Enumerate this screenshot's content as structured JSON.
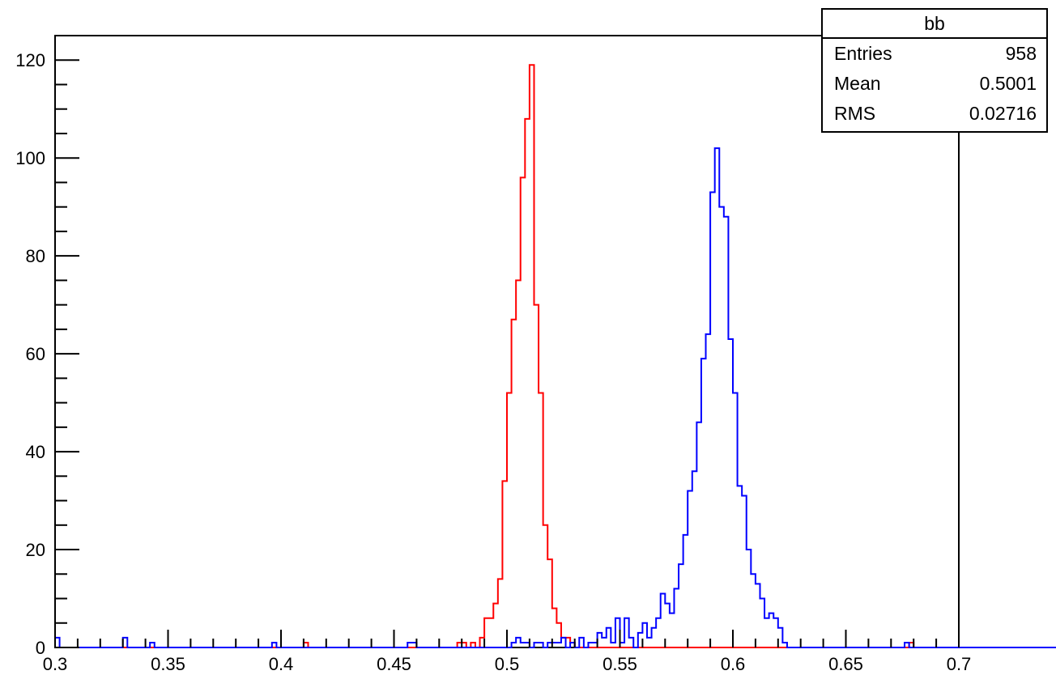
{
  "chart_data": {
    "type": "histogram",
    "title": "",
    "xlabel": "",
    "ylabel": "",
    "xlim": [
      0.3,
      0.7
    ],
    "ylim": [
      0,
      125
    ],
    "bin_width": 0.002,
    "x_ticks": [
      0.3,
      0.35,
      0.4,
      0.45,
      0.5,
      0.55,
      0.6,
      0.65,
      0.7
    ],
    "x_tick_labels": [
      "0.3",
      "0.35",
      "0.4",
      "0.45",
      "0.5",
      "0.55",
      "0.6",
      "0.65",
      "0.7"
    ],
    "y_ticks": [
      0,
      20,
      40,
      60,
      80,
      100,
      120
    ],
    "y_tick_labels": [
      "0",
      "20",
      "40",
      "60",
      "80",
      "100",
      "120"
    ],
    "grid": false,
    "series": [
      {
        "color": "#ff0000",
        "bin_start": 0.41,
        "values": [
          1,
          0,
          0,
          0,
          0,
          0,
          0,
          0,
          0,
          0,
          0,
          0,
          0,
          0,
          0,
          0,
          0,
          0,
          0,
          0,
          0,
          0,
          0,
          0,
          0,
          0,
          0,
          0,
          0,
          0,
          0,
          0,
          0,
          0,
          1,
          1,
          0,
          1,
          0,
          2,
          6,
          6,
          9,
          14,
          34,
          52,
          67,
          75,
          96,
          108,
          119,
          70,
          52,
          25,
          18,
          8,
          5,
          2,
          2,
          1,
          0,
          0,
          0,
          0,
          0,
          0,
          0,
          0,
          0,
          0,
          0,
          0,
          0,
          0,
          0,
          0,
          0,
          0,
          0,
          0,
          0,
          0,
          0,
          0,
          0,
          0,
          0,
          0,
          0,
          0,
          0,
          0,
          0,
          0,
          0,
          0,
          0,
          0,
          0,
          0,
          0,
          0,
          0,
          0,
          0,
          0,
          0,
          0,
          0,
          0,
          0,
          0,
          0,
          0,
          0,
          0,
          0,
          0,
          0,
          0,
          0,
          0,
          0,
          0,
          0,
          0,
          0,
          0,
          0,
          0,
          0,
          0,
          0,
          0,
          1
        ]
      },
      {
        "color": "#0000ff",
        "bin_start": 0.3,
        "values": [
          2,
          0,
          0,
          0,
          0,
          0,
          0,
          0,
          0,
          0,
          0,
          0,
          0,
          0,
          0,
          2,
          0,
          0,
          0,
          0,
          0,
          1,
          0,
          0,
          0,
          0,
          0,
          0,
          0,
          0,
          0,
          0,
          0,
          0,
          0,
          0,
          0,
          0,
          0,
          0,
          0,
          0,
          0,
          0,
          0,
          0,
          0,
          0,
          1,
          0,
          0,
          0,
          0,
          0,
          0,
          0,
          0,
          0,
          0,
          0,
          0,
          0,
          0,
          0,
          0,
          0,
          0,
          0,
          0,
          0,
          0,
          0,
          0,
          0,
          0,
          0,
          0,
          0,
          1,
          1,
          0,
          0,
          0,
          0,
          0,
          0,
          0,
          0,
          0,
          0,
          0,
          0,
          0,
          0,
          0,
          0,
          0,
          0,
          0,
          0,
          0,
          1,
          2,
          1,
          1,
          0,
          1,
          1,
          0,
          1,
          1,
          1,
          2,
          0,
          1,
          0,
          2,
          0,
          1,
          1,
          3,
          2,
          4,
          1,
          6,
          1,
          6,
          2,
          0,
          3,
          5,
          2,
          4,
          6,
          11,
          9,
          7,
          12,
          17,
          23,
          32,
          36,
          46,
          59,
          64,
          93,
          102,
          90,
          88,
          63,
          52,
          33,
          31,
          20,
          15,
          13,
          10,
          6,
          7,
          6,
          4,
          1,
          0,
          0,
          0,
          0,
          0,
          0,
          0,
          0,
          0,
          0,
          0,
          0,
          0,
          0,
          0,
          0,
          0,
          0,
          0,
          0,
          0,
          0,
          0,
          0,
          0,
          0,
          1,
          0,
          0,
          0,
          0,
          0,
          0,
          0,
          0,
          0,
          0,
          0,
          0,
          0,
          0,
          0,
          0,
          0,
          0,
          0,
          0,
          0,
          0,
          0,
          0,
          0,
          0,
          0,
          0,
          0,
          0,
          0,
          0,
          0,
          0,
          0,
          0,
          0,
          0,
          0,
          0,
          0,
          0,
          0,
          0,
          0,
          0,
          0,
          0,
          0,
          0,
          0,
          0,
          0,
          0,
          0,
          0,
          0,
          0,
          0,
          0,
          0,
          0,
          0,
          0,
          0,
          0,
          0,
          0,
          0,
          0,
          0,
          0,
          0,
          0,
          0,
          0,
          0,
          0,
          0,
          0,
          0,
          0,
          0,
          0,
          0,
          0,
          0,
          0,
          0,
          0,
          0,
          0,
          0,
          0,
          0,
          0,
          0,
          0,
          0,
          0,
          0,
          0,
          0,
          0,
          0,
          0,
          0,
          0,
          0,
          0,
          0,
          0,
          0,
          0,
          0,
          0,
          0,
          0,
          0,
          0,
          0,
          0,
          0,
          0,
          0,
          0,
          0,
          0,
          0,
          0,
          0,
          0,
          0,
          0,
          0,
          0,
          0,
          0,
          0,
          0,
          0,
          0,
          0,
          0,
          0,
          0,
          0,
          0,
          0,
          0,
          0,
          0,
          0,
          0,
          0,
          0,
          0,
          0,
          0,
          0,
          0,
          0,
          0,
          0,
          0,
          0,
          0,
          0,
          0,
          0,
          0,
          0,
          0,
          0,
          0,
          0,
          0,
          0,
          0,
          0,
          0,
          0,
          0,
          0,
          0,
          0,
          0,
          0,
          0,
          0,
          0,
          0,
          0,
          0,
          0,
          0,
          0,
          0,
          0,
          0,
          0,
          0,
          0,
          0,
          0,
          0,
          0,
          0,
          0,
          0,
          0,
          0,
          0,
          0,
          0,
          0,
          0,
          0,
          0,
          0,
          0,
          0,
          0,
          0,
          0,
          0,
          0,
          0,
          0,
          0,
          0,
          0,
          0,
          0,
          0,
          0,
          0,
          0,
          0,
          0,
          0,
          0,
          0,
          0,
          0,
          0,
          0,
          0,
          0,
          0,
          0,
          0,
          0,
          0,
          0,
          0,
          0,
          0,
          0,
          0,
          0,
          0,
          0,
          0,
          0,
          0,
          0,
          0,
          0,
          0,
          0,
          0,
          0,
          0,
          0,
          0,
          0,
          0,
          0,
          0,
          0,
          0,
          0,
          0,
          0,
          0,
          0,
          0,
          0,
          0,
          0,
          0,
          0,
          0,
          0,
          0,
          0,
          0,
          0,
          0,
          0,
          0,
          0,
          0,
          0,
          0,
          0,
          0,
          0,
          0,
          0,
          0,
          0,
          0,
          0,
          0,
          0,
          0,
          0,
          0,
          0,
          0,
          0,
          0,
          0,
          0,
          0,
          0,
          0,
          0,
          0,
          0,
          0,
          0,
          0,
          0,
          0,
          0,
          0,
          0,
          0,
          0,
          0,
          0,
          0,
          0,
          0,
          0,
          0,
          0,
          0,
          0,
          0,
          0,
          0,
          0,
          0,
          0,
          0,
          0,
          0,
          0,
          0,
          0,
          0,
          0,
          0,
          0,
          0,
          0,
          0,
          0,
          0,
          0,
          0,
          0,
          0,
          0,
          0,
          0,
          0,
          0,
          0,
          0,
          0,
          0,
          0,
          0,
          0,
          0,
          0,
          0,
          0,
          0,
          0,
          0,
          0,
          0,
          0,
          0,
          0,
          0,
          0,
          0,
          0,
          0,
          0,
          0,
          0,
          0,
          0,
          0,
          0,
          0,
          0,
          0,
          0,
          0,
          0,
          0,
          0,
          0,
          0,
          0,
          0,
          0,
          0,
          0,
          0,
          0,
          0,
          0,
          0,
          0,
          0,
          0,
          0,
          0,
          0,
          0,
          0,
          0,
          0,
          0,
          0,
          0,
          0,
          0,
          0,
          0,
          0,
          0,
          0,
          0,
          0,
          0,
          0,
          0,
          0,
          0,
          0,
          0,
          0,
          0,
          0,
          0,
          0,
          0,
          0,
          0,
          0,
          0,
          0,
          0,
          0,
          0,
          0,
          0,
          0,
          0,
          0,
          0,
          0,
          0,
          0,
          0,
          0,
          0,
          0,
          0,
          0,
          0,
          0,
          0,
          0,
          0,
          0,
          0,
          0,
          0,
          0
        ]
      }
    ]
  },
  "stats_box": {
    "title": "bb",
    "entries_label": "Entries",
    "entries_value": "958",
    "mean_label": "Mean",
    "mean_value": "0.5001",
    "rms_label": "RMS",
    "rms_value": "0.02716"
  }
}
